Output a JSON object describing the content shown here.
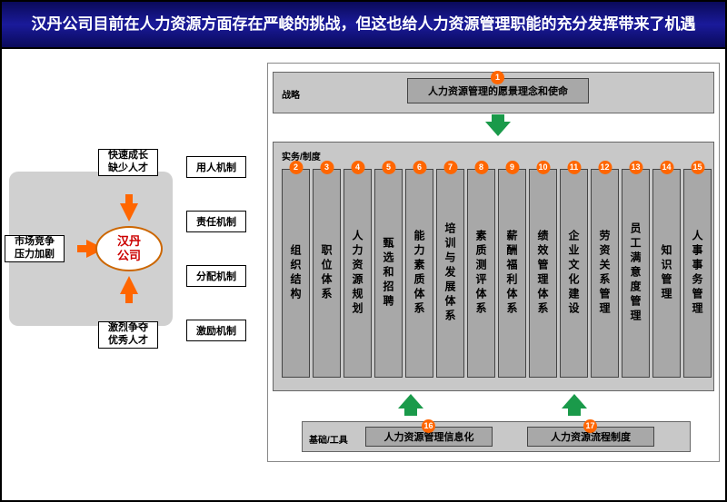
{
  "header": {
    "title": "汉丹公司目前在人力资源方面存在严峻的挑战，但这也给人力资源管理职能的充分发挥带来了机遇"
  },
  "left": {
    "center": "汉丹\n公司",
    "inputs": {
      "market": "市场竞争\n压力加剧",
      "growth": "快速成长\n缺少人才",
      "competition": "激烈争夺\n优秀人才"
    },
    "mechanisms": {
      "m1": "用人机制",
      "m2": "责任机制",
      "m3": "分配机制",
      "m4": "激励机制"
    }
  },
  "right": {
    "labels": {
      "strategy": "战略",
      "practice": "实务/制度",
      "tools": "基础/工具"
    },
    "strategy_box": "人力资源管理的愿景理念和使命",
    "strategy_badge": "1",
    "pillars": [
      {
        "n": "2",
        "t": "组织结构"
      },
      {
        "n": "3",
        "t": "职位体系"
      },
      {
        "n": "4",
        "t": "人力资源规划"
      },
      {
        "n": "5",
        "t": "甄选和招聘"
      },
      {
        "n": "6",
        "t": "能力素质体系"
      },
      {
        "n": "7",
        "t": "培训与发展体系"
      },
      {
        "n": "8",
        "t": "素质测评体系"
      },
      {
        "n": "9",
        "t": "薪酬福利体系"
      },
      {
        "n": "10",
        "t": "绩效管理体系"
      },
      {
        "n": "11",
        "t": "企业文化建设"
      },
      {
        "n": "12",
        "t": "劳资关系管理"
      },
      {
        "n": "13",
        "t": "员工满意度管理"
      },
      {
        "n": "14",
        "t": "知识管理"
      },
      {
        "n": "15",
        "t": "人事事务管理"
      }
    ],
    "tools": {
      "t1": {
        "n": "16",
        "t": "人力资源管理信息化"
      },
      "t2": {
        "n": "17",
        "t": "人力资源流程制度"
      }
    }
  },
  "colors": {
    "header_bg": "#0a0a5a",
    "grey_panel": "#d0d0d0",
    "pillar_bg": "#a8a8a8",
    "arrow_orange": "#ff6600",
    "arrow_green": "#1a9a4a",
    "oval_border": "#cc6600",
    "oval_text": "#cc0000"
  }
}
